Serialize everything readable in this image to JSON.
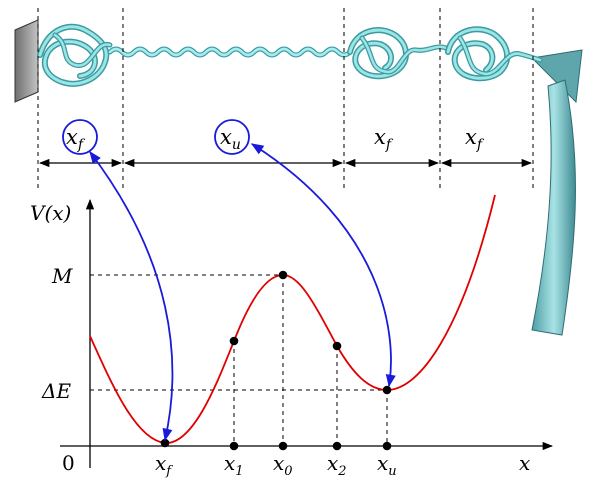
{
  "segment_labels": [
    {
      "text": "x",
      "sub": "f",
      "circled": true
    },
    {
      "text": "x",
      "sub": "u",
      "circled": true
    },
    {
      "text": "x",
      "sub": "f",
      "circled": false
    },
    {
      "text": "x",
      "sub": "f",
      "circled": false
    }
  ],
  "plot": {
    "y_axis_label": "V(x)",
    "x_axis_label": "x",
    "origin_label": "0",
    "y_ticks": [
      {
        "label": "M"
      },
      {
        "label": "ΔE"
      }
    ],
    "x_ticks": [
      {
        "text": "x",
        "sub": "f"
      },
      {
        "text": "x",
        "sub": "1"
      },
      {
        "text": "x",
        "sub": "0"
      },
      {
        "text": "x",
        "sub": "2"
      },
      {
        "text": "x",
        "sub": "u"
      }
    ]
  },
  "colors": {
    "curve": "#e00000",
    "annotation": "#1a1adb",
    "protein": "#7fd6d6",
    "protein_dark": "#3d9aa0",
    "wall": "#999999",
    "cantilever": "#8fcfd4"
  }
}
